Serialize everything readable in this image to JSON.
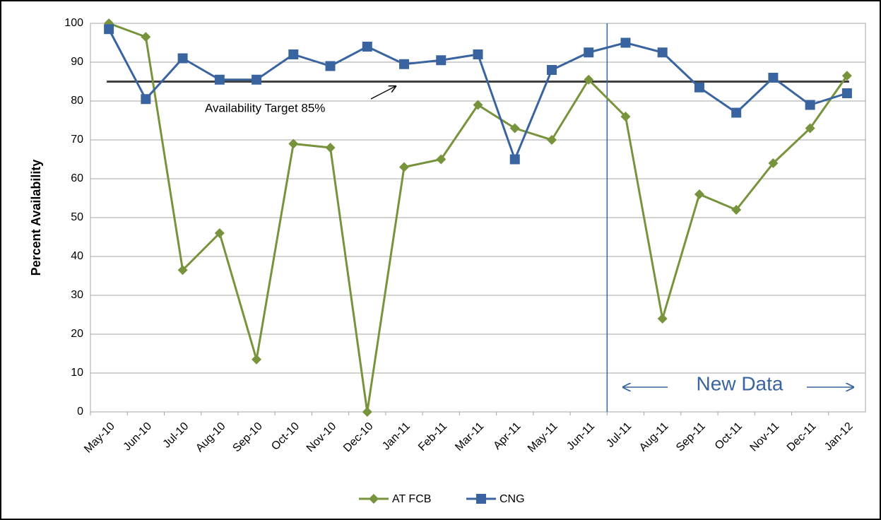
{
  "chart_data": {
    "type": "line",
    "y_label": "Percent Availability",
    "categories": [
      "May-10",
      "Jun-10",
      "Jul-10",
      "Aug-10",
      "Sep-10",
      "Oct-10",
      "Nov-10",
      "Dec-10",
      "Jan-11",
      "Feb-11",
      "Mar-11",
      "Apr-11",
      "May-11",
      "Jun-11",
      "Jul-11",
      "Aug-11",
      "Sep-11",
      "Oct-11",
      "Nov-11",
      "Dec-11",
      "Jan-12"
    ],
    "series": [
      {
        "name": "AT FCB",
        "color": "#77933c",
        "marker": "diamond",
        "values": [
          100,
          96.5,
          36.5,
          46,
          13.5,
          69,
          68,
          0,
          63,
          65,
          79,
          73,
          70,
          85.5,
          76,
          24,
          56,
          52,
          64,
          73,
          86.5
        ]
      },
      {
        "name": "CNG",
        "color": "#3a64a0",
        "marker": "square",
        "values": [
          98.5,
          80.5,
          91,
          85.5,
          85.5,
          92,
          89,
          94,
          89.5,
          90.5,
          92,
          65,
          88,
          92.5,
          95,
          92.5,
          83.5,
          77,
          86,
          79,
          82
        ]
      }
    ],
    "target_line": {
      "value": 85,
      "label": "Availability Target 85%",
      "color": "#404040"
    },
    "annotation": "New Data",
    "ylim": [
      0,
      100
    ],
    "yticks": [
      0,
      10,
      20,
      30,
      40,
      50,
      60,
      70,
      80,
      90,
      100
    ],
    "grid": true,
    "legend": "bottom"
  }
}
